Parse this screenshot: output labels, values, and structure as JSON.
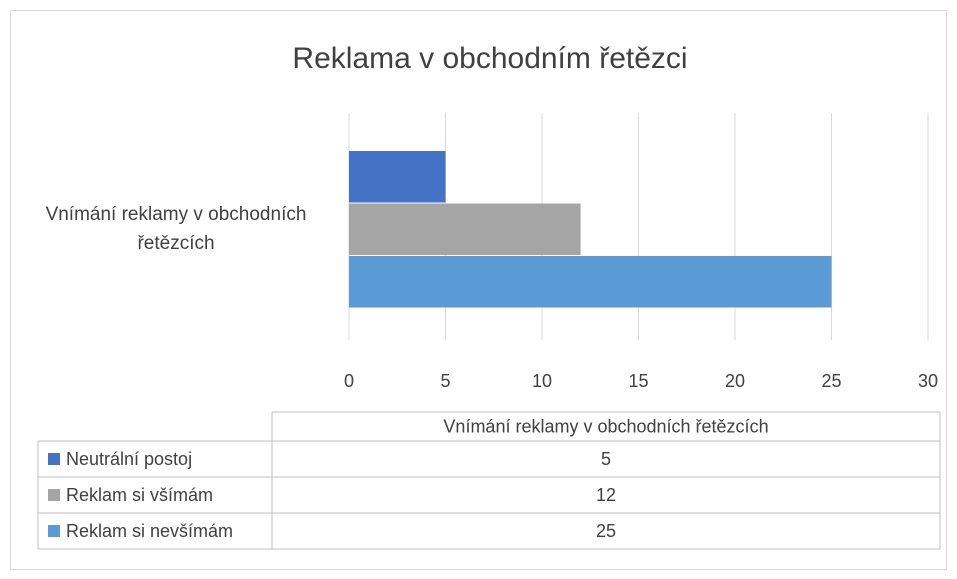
{
  "chart_data": {
    "type": "bar",
    "orientation": "horizontal",
    "title": "Reklama v obchodním řetězci",
    "categories": [
      "Vnímání reklamy v obchodních řetězcích"
    ],
    "series": [
      {
        "name": "Neutrální postoj",
        "color": "#4472c4",
        "values": [
          5
        ]
      },
      {
        "name": "Reklam si všímám",
        "color": "#a5a5a5",
        "values": [
          12
        ]
      },
      {
        "name": "Reklam si nevšímám",
        "color": "#5b9bd5",
        "values": [
          25
        ]
      }
    ],
    "xlim": [
      0,
      30
    ],
    "xticks": [
      0,
      5,
      10,
      15,
      20,
      25,
      30
    ],
    "grid": true,
    "data_table": true
  }
}
